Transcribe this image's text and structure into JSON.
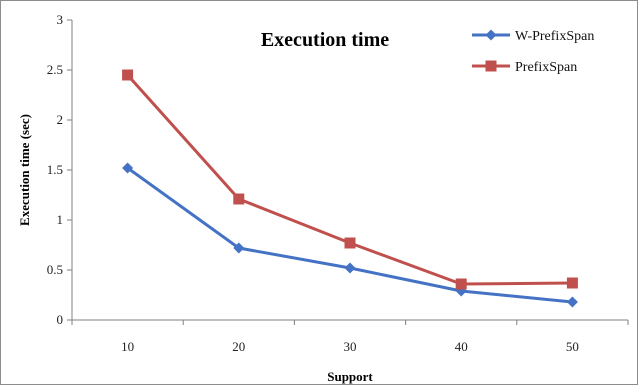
{
  "chart_data": {
    "type": "line",
    "title": "Execution time",
    "xlabel": "Support",
    "ylabel": "Execution time (sec)",
    "categories": [
      "10",
      "20",
      "30",
      "40",
      "50"
    ],
    "ylim": [
      0,
      3
    ],
    "yticks": [
      "0",
      "0.5",
      "1",
      "1.5",
      "2",
      "2.5",
      "3"
    ],
    "grid": false,
    "legend_position": "top-right",
    "series": [
      {
        "name": "W-PrefixSpan",
        "values": [
          1.52,
          0.72,
          0.52,
          0.29,
          0.18
        ],
        "color": "#4472C4",
        "marker": "diamond"
      },
      {
        "name": "PrefixSpan",
        "values": [
          2.45,
          1.21,
          0.77,
          0.36,
          0.37
        ],
        "color": "#C0504D",
        "marker": "square"
      }
    ]
  }
}
